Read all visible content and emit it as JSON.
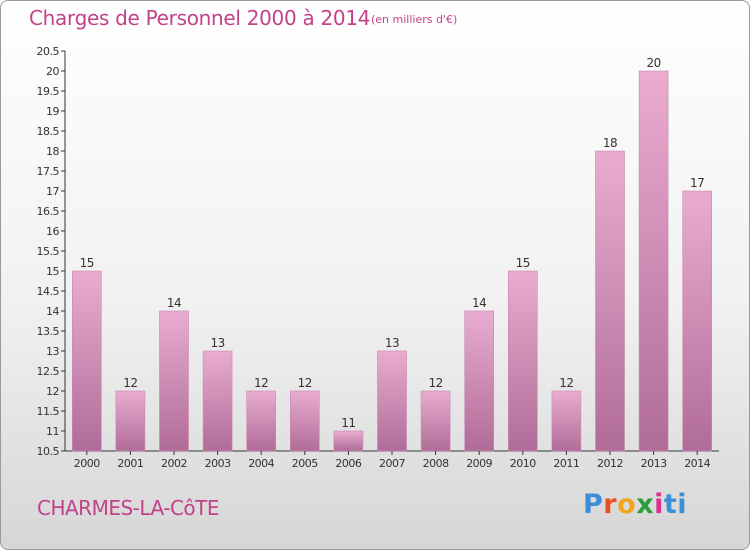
{
  "header": {
    "title": "Charges de Personnel 2000 à 2014",
    "subtitle": "(en milliers d'€)"
  },
  "footer": {
    "commune": "CHARMES-LA-CôTE",
    "logo": "Proxiti"
  },
  "colors": {
    "title": "#c2418a",
    "bar_light": "#e9acd0",
    "bar_dark": "#b06c98",
    "axis": "#333333"
  },
  "chart_data": {
    "type": "bar",
    "title": "Charges de Personnel 2000 à 2014",
    "subtitle": "(en milliers d'€)",
    "categories": [
      "2000",
      "2001",
      "2002",
      "2003",
      "2004",
      "2005",
      "2006",
      "2007",
      "2008",
      "2009",
      "2010",
      "2011",
      "2012",
      "2013",
      "2014"
    ],
    "values": [
      15,
      12,
      14,
      13,
      12,
      12,
      11,
      13,
      12,
      14,
      15,
      12,
      18,
      20,
      17
    ],
    "data_labels": [
      "15",
      "12",
      "14",
      "13",
      "12",
      "12",
      "11",
      "13",
      "12",
      "14",
      "15",
      "12",
      "18",
      "20",
      "17"
    ],
    "ylim": [
      10.5,
      20.5
    ],
    "yticks": [
      "10.5",
      "11",
      "11.5",
      "12",
      "12.5",
      "13",
      "13.5",
      "14",
      "14.5",
      "15",
      "15.5",
      "16",
      "16.5",
      "17",
      "17.5",
      "18",
      "18.5",
      "19",
      "19.5",
      "20",
      "20.5"
    ],
    "grid": false,
    "xlabel": "",
    "ylabel": ""
  }
}
